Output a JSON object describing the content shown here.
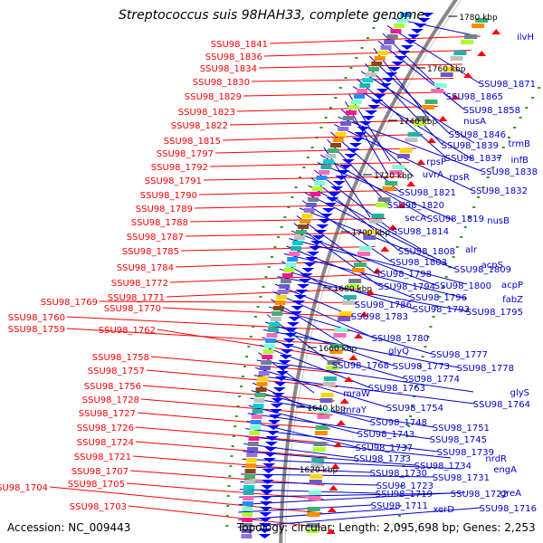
{
  "title": "Streptococcus suis 98HAH33, complete genome",
  "accession": "Accession: NC_009443",
  "topology": "Topology: circular; Length: 2,095,698 bp; Genes: 2,253",
  "colors": {
    "left_label": "#ff0000",
    "right_label": "#0000cc",
    "plus_strand": "#ff0000",
    "minus_strand": "#0000ff",
    "backbone": "#888888",
    "gc_dots": "#2a9a2a"
  },
  "kbp_ticks": [
    "1780 kbp",
    "1760 kbp",
    "1740 kbp",
    "1720 kbp",
    "1700 kbp",
    "1680 kbp",
    "1660 kbp",
    "1640 kbp",
    "1620 kbp"
  ],
  "left_labels": [
    "SSU98_1841",
    "SSU98_1836",
    "SSU98_1834",
    "SSU98_1830",
    "SSU98_1829",
    "SSU98_1823",
    "SSU98_1822",
    "SSU98_1815",
    "SSU98_1797",
    "SSU98_1792",
    "SSU98_1791",
    "SSU98_1790",
    "SSU98_1789",
    "SSU98_1788",
    "SSU98_1787",
    "SSU98_1785",
    "SSU98_1784",
    "SSU98_1772",
    "SSU98_1771",
    "SSU98_1769",
    "SSU98_1770",
    "SSU98_1760",
    "SSU98_1759",
    "SSU98_1762",
    "SSU98_1758",
    "SSU98_1757",
    "SSU98_1756",
    "SSU98_1728",
    "SSU98_1727",
    "SSU98_1726",
    "SSU98_1724",
    "SSU98_1721",
    "SSU98_1707",
    "SSU98_1705",
    "SSU98_1704",
    "SSU98_1703"
  ],
  "right_labels": [
    "ilvH",
    "SSU98_1871",
    "SSU98_1865",
    "SSU98_1858",
    "nusA",
    "SSU98_1846",
    "SSU98_1839",
    "trmB",
    "SSU98_1837",
    "infB",
    "rpsP",
    "uvrA",
    "rpsR",
    "SSU98_1838",
    "SSU98_1832",
    "SSU98_1821",
    "SSU98_1820",
    "secA",
    "SSU98_1819",
    "nusB",
    "SSU98_1814",
    "SSU98_1808",
    "alr",
    "acpS",
    "SSU98_1803",
    "SSU98_1809",
    "SSU98_1798",
    "SSU98_1794",
    "SSU98_1800",
    "acpP",
    "SSU98_1796",
    "fabZ",
    "SSU98_1786",
    "SSU98_1793",
    "SSU98_1795",
    "SSU98_1783",
    "SSU98_1780",
    "glyQ",
    "SSU98_1777",
    "SSU98_1768",
    "SSU98_1773",
    "SSU98_1778",
    "SSU98_1774",
    "SSU98_1763",
    "mraW",
    "glyS",
    "SSU98_1754",
    "SSU98_1764",
    "mraY",
    "SSU98_1748",
    "SSU98_1751",
    "SSU98_1743",
    "SSU98_1745",
    "SSU98_1737",
    "SSU98_1739",
    "nrdR",
    "SSU98_1733",
    "SSU98_1734",
    "engA",
    "SSU98_1730",
    "SSU98_1731",
    "SSU98_1723",
    "SSU98_1719",
    "SSU98_1722",
    "greA",
    "SSU98_1711",
    "xerD",
    "SSU98_1716"
  ]
}
